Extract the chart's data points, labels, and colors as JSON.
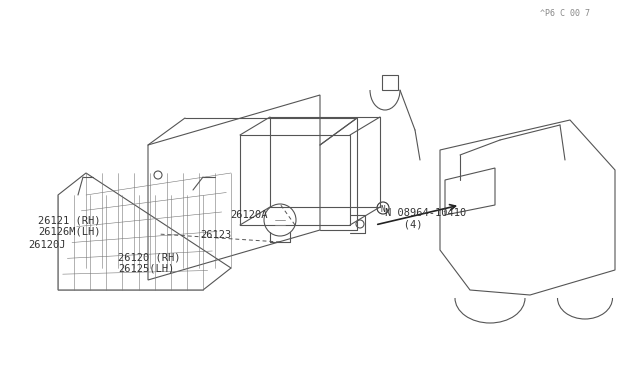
{
  "title": "",
  "bg_color": "#ffffff",
  "line_color": "#555555",
  "text_color": "#333333",
  "labels": {
    "26120_rh_lh": "26120 (RH)\n26125(LH)",
    "26120A": "26120A",
    "26123": "26123",
    "26121_rh": "26121 (RH)\n26126M(LH)",
    "26120J": "26120J",
    "N_bolt": "N 08964-10410\n   (4)"
  },
  "watermark": "^P6 C 00 7"
}
